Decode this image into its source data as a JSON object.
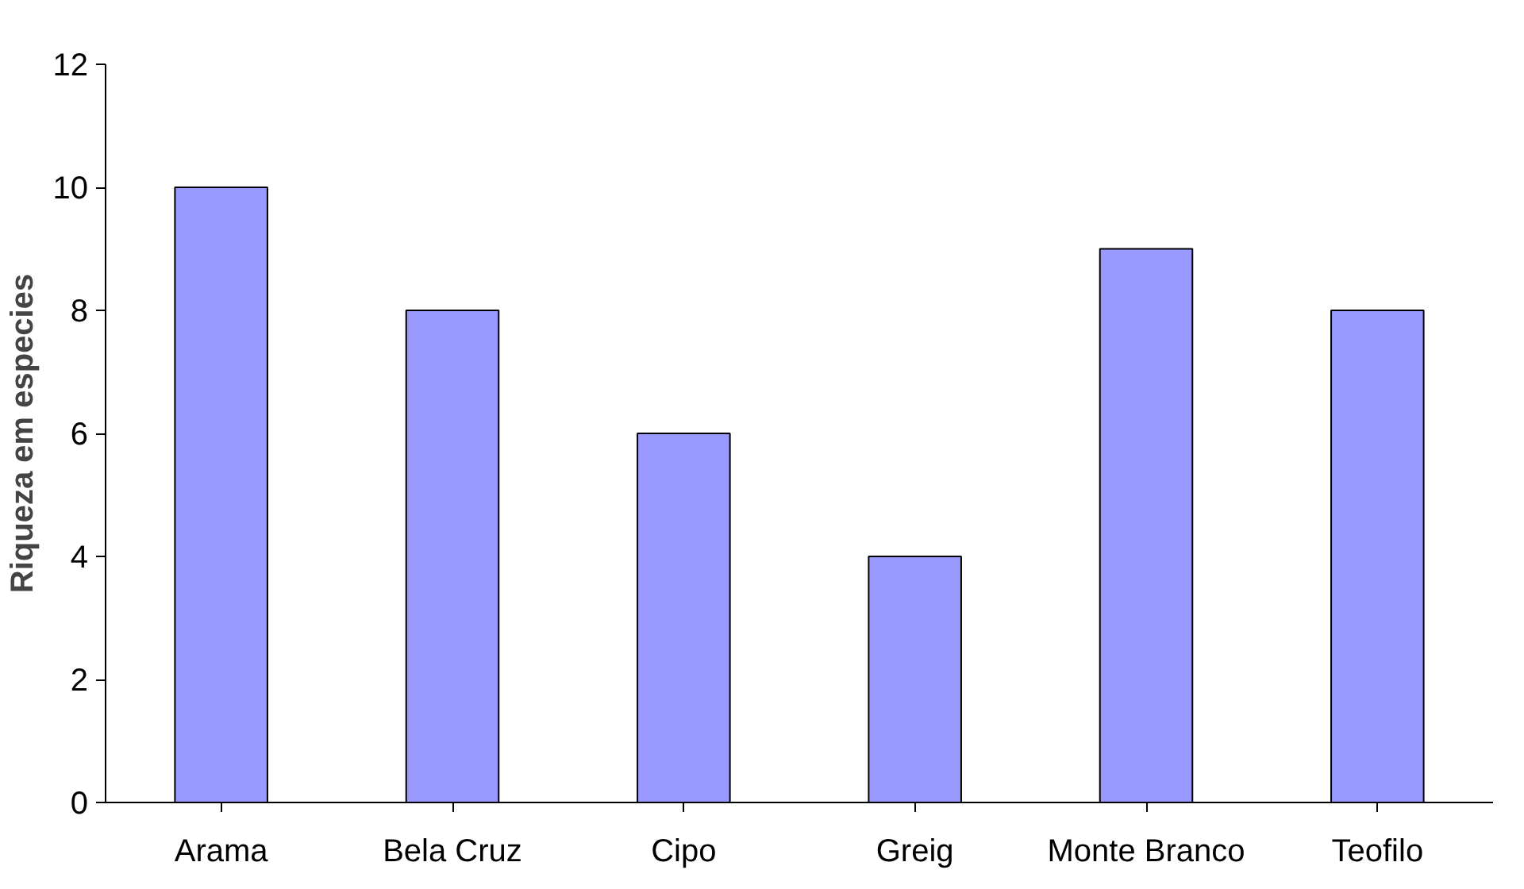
{
  "chart_data": {
    "type": "bar",
    "ylabel": "Riqueza em especies",
    "categories": [
      "Arama",
      "Bela Cruz",
      "Cipo",
      "Greig",
      "Monte Branco",
      "Teofilo"
    ],
    "values": [
      10,
      8,
      6,
      4,
      9,
      8
    ],
    "color": "#9999ff",
    "ylim": [
      0,
      12
    ],
    "yticks": [
      0,
      2,
      4,
      6,
      8,
      10,
      12
    ],
    "grid": false
  }
}
